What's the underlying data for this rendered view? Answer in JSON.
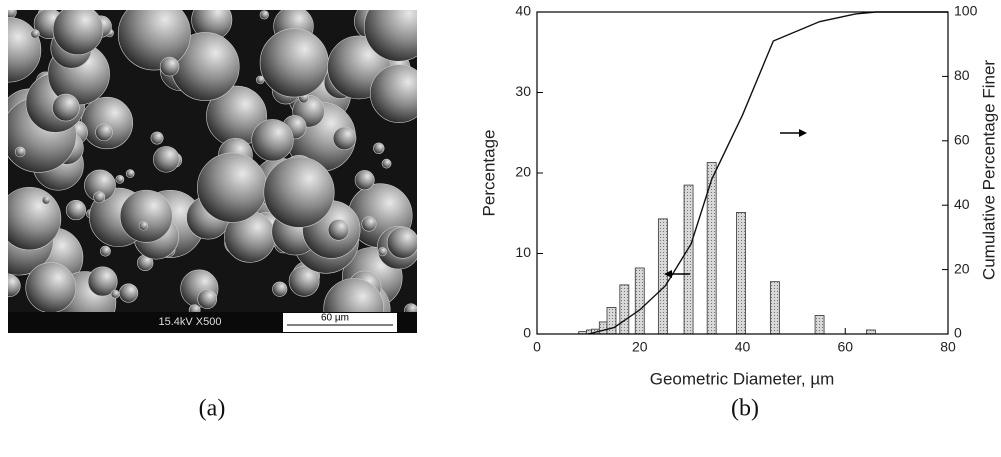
{
  "panel_a": {
    "info_text": "15.4kV  X500",
    "scale_bar": "60 µm"
  },
  "captions": [
    "(a)",
    "(b)"
  ],
  "chart_data": {
    "type": "bar",
    "xlabel": "Geometric Diameter, µm",
    "ylabel": "Percentage",
    "y2label": "Cumulative Percentage Finer",
    "xlim": [
      0,
      80
    ],
    "xticks": [
      0,
      20,
      40,
      60,
      80
    ],
    "ylim": [
      0,
      40
    ],
    "yticks": [
      0,
      10,
      20,
      30,
      40
    ],
    "y2lim": [
      0,
      100
    ],
    "y2ticks": [
      0,
      20,
      40,
      60,
      80,
      100
    ],
    "series": [
      {
        "type": "bar",
        "color": "#bdbdbd",
        "x": [
          9,
          10.5,
          11.5,
          13,
          14.5,
          17,
          20,
          24.5,
          29.5,
          34,
          39.7,
          46.3,
          55,
          65
        ],
        "values": [
          0.3,
          0.5,
          0.6,
          1.5,
          3.3,
          6.1,
          8.2,
          14.3,
          18.5,
          21.3,
          15.1,
          6.5,
          2.3,
          0.5
        ]
      },
      {
        "type": "line",
        "axis": "y2",
        "color": "#111",
        "x": [
          10,
          15,
          20,
          25,
          30,
          34,
          40,
          46,
          55,
          62,
          66,
          80
        ],
        "values": [
          0,
          2,
          7.5,
          15,
          28,
          48,
          68,
          91,
          97,
          99.4,
          100,
          100
        ]
      }
    ]
  }
}
